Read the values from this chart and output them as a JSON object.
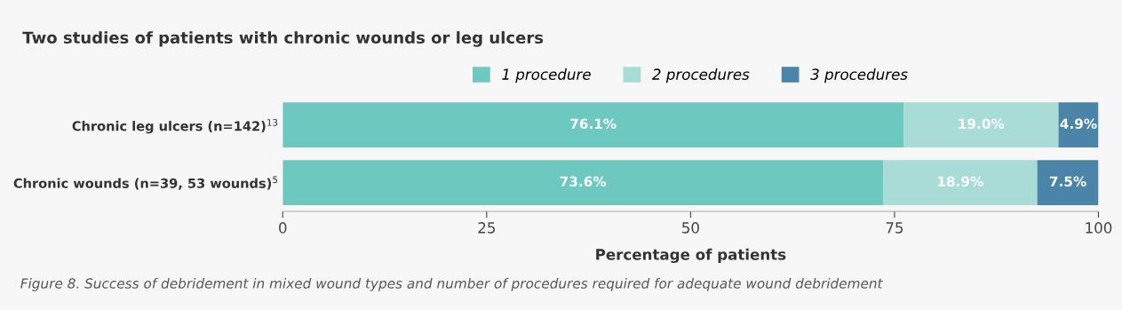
{
  "chart_data": {
    "type": "bar",
    "orientation": "horizontal",
    "stacked": true,
    "title": "Two studies of patients with chronic wounds or leg ulcers",
    "xlabel": "Percentage of patients",
    "categories": [
      "Chronic leg ulcers (n=142)$^{13}$",
      "Chronic wounds (n=39, 53 wounds)$^{5}$"
    ],
    "series": [
      {
        "name": "1 procedure",
        "color": "#6dc9c0",
        "values": [
          76.1,
          73.6
        ],
        "value_labels": [
          "76.1%",
          "73.6%"
        ]
      },
      {
        "name": "2 procedures",
        "color": "#a9dcd7",
        "values": [
          19.0,
          18.9
        ],
        "value_labels": [
          "19.0%",
          "18.9%"
        ]
      },
      {
        "name": "3 procedures",
        "color": "#4a84a8",
        "values": [
          4.9,
          7.5
        ],
        "value_labels": [
          "4.9%",
          "7.5%"
        ]
      }
    ],
    "xlim": [
      0,
      100
    ],
    "xticks": [
      0,
      25,
      50,
      75,
      100
    ],
    "grid": false,
    "legend": "top",
    "annotations": [
      "Figure 8. Success of debridement in mixed wound types and number of procedures required for adequate wound debridement"
    ]
  }
}
